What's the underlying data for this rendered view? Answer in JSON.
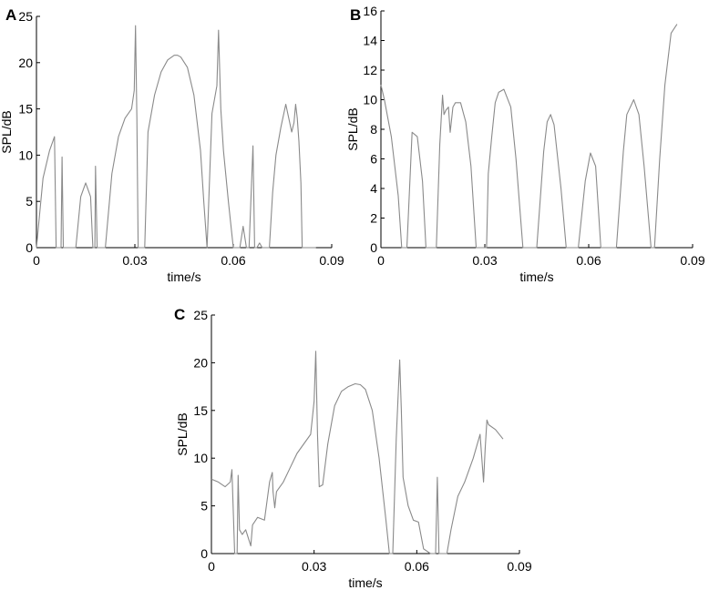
{
  "chart_data": [
    {
      "panel": "A",
      "type": "line",
      "xlabel": "time/s",
      "ylabel": "SPL/dB",
      "xlim": [
        0,
        0.09
      ],
      "ylim": [
        0,
        25
      ],
      "xticks": [
        0,
        0.03,
        0.06,
        0.09
      ],
      "xtick_labels": [
        "0",
        "0.03",
        "0.06",
        "0.09"
      ],
      "yticks": [
        0,
        5,
        10,
        15,
        20,
        25
      ],
      "ytick_labels": [
        "0",
        "5",
        "10",
        "15",
        "20",
        "25"
      ],
      "color": "#8a8a8a",
      "x": [
        0,
        0.002,
        0.004,
        0.0055,
        0.006,
        0.0068,
        0.0075,
        0.0078,
        0.0082,
        0.009,
        0.01,
        0.012,
        0.0135,
        0.015,
        0.0165,
        0.0172,
        0.0178,
        0.018,
        0.0185,
        0.019,
        0.0198,
        0.021,
        0.023,
        0.025,
        0.027,
        0.029,
        0.0298,
        0.0302,
        0.0306,
        0.031,
        0.0318,
        0.033,
        0.034,
        0.036,
        0.038,
        0.04,
        0.042,
        0.043,
        0.044,
        0.046,
        0.048,
        0.05,
        0.051,
        0.052,
        0.0535,
        0.055,
        0.0555,
        0.0562,
        0.057,
        0.0585,
        0.06,
        0.0612,
        0.062,
        0.063,
        0.064,
        0.0648,
        0.066,
        0.0665,
        0.0672,
        0.068,
        0.0688,
        0.0695,
        0.0702,
        0.071,
        0.072,
        0.073,
        0.0745,
        0.076,
        0.0778,
        0.0785,
        0.079,
        0.0795,
        0.08,
        0.0806,
        0.081,
        0.0825,
        0.084,
        0.0852
      ],
      "y": [
        0,
        7.5,
        10.5,
        12.0,
        0,
        0,
        0,
        9.8,
        0,
        0,
        0,
        0,
        5.5,
        7.0,
        5.5,
        0,
        0,
        8.8,
        0,
        0,
        0,
        0,
        8.0,
        12.0,
        14.0,
        15.0,
        17.0,
        24.0,
        14.0,
        0,
        0,
        0,
        12.5,
        16.5,
        19.0,
        20.3,
        20.8,
        20.8,
        20.6,
        19.5,
        16.5,
        10.5,
        5.0,
        0,
        14.5,
        17.5,
        23.5,
        15.0,
        10.5,
        5.0,
        0,
        0,
        0,
        2.3,
        0,
        0,
        11.0,
        0,
        0,
        0.5,
        0,
        0,
        0,
        0,
        6.0,
        10.0,
        13.0,
        15.5,
        12.5,
        13.5,
        15.5,
        14.0,
        11.5,
        7.0,
        0,
        0,
        0,
        0
      ]
    },
    {
      "panel": "B",
      "type": "line",
      "xlabel": "time/s",
      "ylabel": "SPL/dB",
      "xlim": [
        0,
        0.09
      ],
      "ylim": [
        0,
        16
      ],
      "xticks": [
        0,
        0.03,
        0.06,
        0.09
      ],
      "xtick_labels": [
        "0",
        "0.03",
        "0.06",
        "0.09"
      ],
      "yticks": [
        0,
        2,
        4,
        6,
        8,
        10,
        12,
        14,
        16
      ],
      "ytick_labels": [
        "0",
        "2",
        "4",
        "6",
        "8",
        "10",
        "12",
        "14",
        "16"
      ],
      "color": "#8a8a8a",
      "x": [
        0,
        0.001,
        0.003,
        0.005,
        0.006,
        0.0068,
        0.0075,
        0.009,
        0.0105,
        0.012,
        0.013,
        0.0138,
        0.016,
        0.017,
        0.0178,
        0.0182,
        0.0188,
        0.0195,
        0.02,
        0.0208,
        0.0215,
        0.023,
        0.0245,
        0.026,
        0.0275,
        0.029,
        0.03,
        0.0305,
        0.031,
        0.032,
        0.033,
        0.034,
        0.0355,
        0.0375,
        0.039,
        0.041,
        0.043,
        0.045,
        0.047,
        0.048,
        0.049,
        0.05,
        0.052,
        0.0535,
        0.055,
        0.057,
        0.059,
        0.0605,
        0.062,
        0.0635,
        0.065,
        0.066,
        0.068,
        0.07,
        0.071,
        0.073,
        0.0745,
        0.076,
        0.078,
        0.079,
        0.0805,
        0.082,
        0.0838,
        0.0855
      ],
      "y": [
        11.0,
        10.0,
        7.5,
        3.5,
        0,
        0,
        0,
        7.8,
        7.5,
        4.5,
        0,
        0,
        0,
        7.0,
        10.3,
        9.0,
        9.3,
        9.5,
        7.8,
        9.5,
        9.8,
        9.8,
        8.5,
        5.5,
        0,
        0,
        0,
        0,
        5.0,
        7.5,
        9.8,
        10.5,
        10.7,
        9.5,
        6.0,
        0,
        0,
        0,
        6.5,
        8.5,
        9.0,
        8.3,
        4.0,
        0,
        0,
        0,
        4.5,
        6.4,
        5.5,
        0,
        0,
        0,
        0,
        6.5,
        9.0,
        10.0,
        9.0,
        5.5,
        0,
        0,
        6.0,
        11.0,
        14.5,
        15.1
      ]
    },
    {
      "panel": "C",
      "type": "line",
      "xlabel": "time/s",
      "ylabel": "SPL/dB",
      "xlim": [
        0,
        0.09
      ],
      "ylim": [
        0,
        25
      ],
      "xticks": [
        0,
        0.03,
        0.06,
        0.09
      ],
      "xtick_labels": [
        "0",
        "0.03",
        "0.06",
        "0.09"
      ],
      "yticks": [
        0,
        5,
        10,
        15,
        20,
        25
      ],
      "ytick_labels": [
        "0",
        "5",
        "10",
        "15",
        "20",
        "25"
      ],
      "color": "#8a8a8a",
      "x": [
        0,
        0.002,
        0.004,
        0.0055,
        0.006,
        0.0068,
        0.0075,
        0.0078,
        0.0082,
        0.009,
        0.01,
        0.0115,
        0.012,
        0.0135,
        0.0155,
        0.017,
        0.0178,
        0.018,
        0.0185,
        0.019,
        0.021,
        0.023,
        0.025,
        0.027,
        0.029,
        0.03,
        0.0305,
        0.031,
        0.0315,
        0.0325,
        0.034,
        0.036,
        0.038,
        0.04,
        0.042,
        0.0435,
        0.045,
        0.047,
        0.049,
        0.051,
        0.052,
        0.053,
        0.054,
        0.055,
        0.0555,
        0.056,
        0.0575,
        0.059,
        0.0605,
        0.062,
        0.064,
        0.0655,
        0.066,
        0.0665,
        0.067,
        0.068,
        0.0688,
        0.07,
        0.072,
        0.074,
        0.0765,
        0.0785,
        0.0795,
        0.08,
        0.0805,
        0.081,
        0.083,
        0.0852
      ],
      "y": [
        7.8,
        7.5,
        7.0,
        7.5,
        8.8,
        0,
        0,
        8.2,
        2.5,
        2.0,
        2.5,
        0.8,
        3.0,
        3.8,
        3.5,
        7.5,
        8.5,
        6.5,
        4.8,
        6.5,
        7.5,
        9.0,
        10.5,
        11.5,
        12.5,
        16.0,
        21.2,
        12.5,
        7.0,
        7.2,
        11.5,
        15.5,
        17.0,
        17.5,
        17.8,
        17.7,
        17.2,
        15.0,
        10.0,
        3.5,
        0,
        0,
        12.0,
        20.3,
        15.0,
        8.0,
        5.0,
        3.5,
        3.3,
        0.5,
        0,
        0,
        8.0,
        0,
        0,
        0,
        0,
        2.5,
        6.0,
        7.5,
        10.0,
        12.5,
        7.5,
        11.0,
        14.0,
        13.5,
        13.0,
        12.0
      ]
    }
  ]
}
